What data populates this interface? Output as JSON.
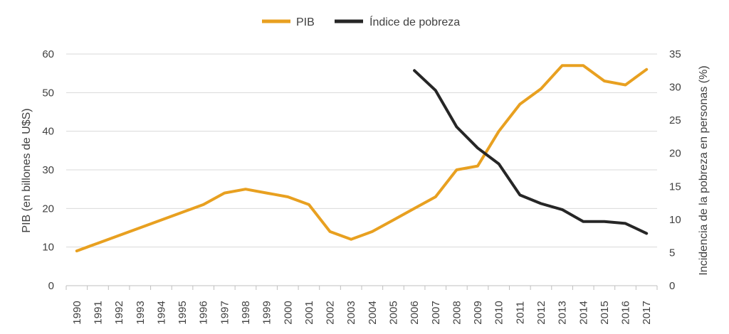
{
  "chart_data": {
    "type": "line",
    "title": "",
    "xlabel": "",
    "ylabel": "PIB (en billones de U$S)",
    "y2label": "Incidencia de la pobreza en personas (%)",
    "ylim": [
      0,
      60
    ],
    "y_ticks": [
      0,
      10,
      20,
      30,
      40,
      50,
      60
    ],
    "y2lim": [
      0,
      35
    ],
    "y2_ticks": [
      0,
      5,
      10,
      15,
      20,
      25,
      30,
      35
    ],
    "grid": "horizontal",
    "legend_position": "top",
    "categories": [
      "1990",
      "1991",
      "1992",
      "1993",
      "1994",
      "1995",
      "1996",
      "1997",
      "1998",
      "1999",
      "2000",
      "2001",
      "2002",
      "2003",
      "2004",
      "2005",
      "2006",
      "2007",
      "2008",
      "2009",
      "2010",
      "2011",
      "2012",
      "2013",
      "2014",
      "2015",
      "2016",
      "2017"
    ],
    "series": [
      {
        "name": "PIB",
        "axis": "left",
        "color": "#E8A020",
        "values": [
          9,
          11,
          13,
          15,
          17,
          19,
          21,
          24,
          25,
          24,
          23,
          21,
          14,
          12,
          14,
          17,
          20,
          23,
          30,
          31,
          40,
          47,
          51,
          57,
          57,
          53,
          52,
          56
        ]
      },
      {
        "name": "Índice de pobreza",
        "axis": "right",
        "color": "#262626",
        "values": [
          null,
          null,
          null,
          null,
          null,
          null,
          null,
          null,
          null,
          null,
          null,
          null,
          null,
          null,
          null,
          null,
          32.5,
          29.5,
          24,
          20.8,
          18.4,
          13.7,
          12.4,
          11.5,
          9.7,
          9.7,
          9.4,
          7.9
        ]
      }
    ]
  }
}
